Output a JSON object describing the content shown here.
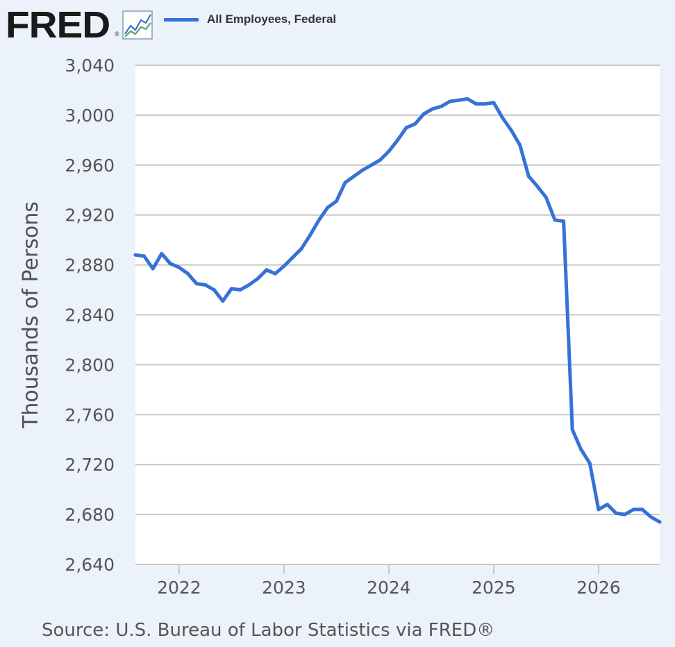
{
  "brand": {
    "logo_text": "FRED",
    "logo_reg": "®",
    "logo_icon": "line-chart-icon"
  },
  "colors": {
    "background": "#ebf2fa",
    "plot_background": "#ffffff",
    "series": "#3572d8",
    "grid": "#c8c8c8"
  },
  "footer": {
    "source": "Source: U.S. Bureau of Labor Statistics via FRED®"
  },
  "chart_data": {
    "type": "line",
    "title": "",
    "ylabel": "Thousands of Persons",
    "xlabel": "",
    "ylim": [
      2640,
      3040
    ],
    "xlim": [
      "2021-08",
      "2026-08"
    ],
    "yticks": [
      2640,
      2680,
      2720,
      2760,
      2800,
      2840,
      2880,
      2920,
      2960,
      3000,
      3040
    ],
    "ytick_labels": [
      "2,640",
      "2,680",
      "2,720",
      "2,760",
      "2,800",
      "2,840",
      "2,880",
      "2,920",
      "2,960",
      "3,000",
      "3,040"
    ],
    "xtick_labels": [
      "2022",
      "2023",
      "2024",
      "2025",
      "2026"
    ],
    "grid": "horizontal",
    "legend_position": "top-left",
    "series": [
      {
        "name": "All Employees, Federal",
        "x": [
          "2021-08",
          "2021-09",
          "2021-10",
          "2021-11",
          "2021-12",
          "2022-01",
          "2022-02",
          "2022-03",
          "2022-04",
          "2022-05",
          "2022-06",
          "2022-07",
          "2022-08",
          "2022-09",
          "2022-10",
          "2022-11",
          "2022-12",
          "2023-01",
          "2023-02",
          "2023-03",
          "2023-04",
          "2023-05",
          "2023-06",
          "2023-07",
          "2023-08",
          "2023-09",
          "2023-10",
          "2023-11",
          "2023-12",
          "2024-01",
          "2024-02",
          "2024-03",
          "2024-04",
          "2024-05",
          "2024-06",
          "2024-07",
          "2024-08",
          "2024-09",
          "2024-10",
          "2024-11",
          "2024-12",
          "2025-01",
          "2025-02",
          "2025-03",
          "2025-04",
          "2025-05",
          "2025-06",
          "2025-07",
          "2025-08",
          "2025-09",
          "2025-10",
          "2025-11",
          "2025-12",
          "2026-01",
          "2026-02",
          "2026-03",
          "2026-04",
          "2026-05",
          "2026-06",
          "2026-07",
          "2026-08"
        ],
        "values": [
          2888,
          2887,
          2877,
          2889,
          2881,
          2878,
          2873,
          2865,
          2864,
          2860,
          2851,
          2861,
          2860,
          2864,
          2869,
          2876,
          2873,
          2879,
          2886,
          2893,
          2904,
          2916,
          2926,
          2931,
          2946,
          2951,
          2956,
          2960,
          2964,
          2971,
          2980,
          2990,
          2993,
          3001,
          3005,
          3007,
          3011,
          3012,
          3013,
          3009,
          3009,
          3010,
          2998,
          2988,
          2976,
          2951,
          2943,
          2934,
          2916,
          2915,
          2748,
          2732,
          2721,
          2684,
          2688,
          2681,
          2680,
          2684,
          2684,
          2678,
          2674
        ]
      }
    ]
  }
}
